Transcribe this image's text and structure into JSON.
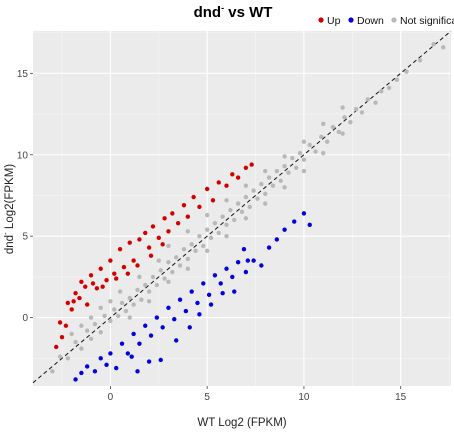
{
  "chart_data": {
    "type": "scatter",
    "title": "dnd- vs WT",
    "title_main": "dnd",
    "title_superscript": "-",
    "title_rest": " vs WT",
    "xlabel": "WT  Log2 (FPKM)",
    "ylabel": "dnd-  Log2(FPKM)",
    "ylabel_prefix": "dnd",
    "ylabel_superscript": "-",
    "ylabel_rest": "  Log2(FPKM)",
    "xlim": [
      -4,
      17.6
    ],
    "ylim": [
      -4.2,
      17.6
    ],
    "x_ticks": [
      0,
      5,
      10,
      15
    ],
    "x_tick_labels": [
      "0",
      "5",
      "10",
      "15"
    ],
    "y_ticks": [
      0,
      5,
      10,
      15
    ],
    "y_tick_labels": [
      "0",
      "5",
      "10",
      "15"
    ],
    "grid": true,
    "reference_line": {
      "style": "dashed",
      "slope": 1,
      "intercept": 0
    },
    "legend": {
      "placement": "top-right",
      "items": [
        {
          "label": "Up",
          "color": "#d40000"
        },
        {
          "label": "Down",
          "color": "#0000e0"
        },
        {
          "label": "Not significant",
          "color": "#b8b8b8"
        }
      ]
    },
    "series": [
      {
        "name": "Not significant",
        "color": "#b8b8b8",
        "points": [
          [
            -3,
            -3.3
          ],
          [
            -2.6,
            -2.4
          ],
          [
            -2.2,
            -2.5
          ],
          [
            -1.8,
            -1.5
          ],
          [
            -1.5,
            -1.9
          ],
          [
            -1.2,
            -0.8
          ],
          [
            -1,
            -1.3
          ],
          [
            -0.8,
            -0.4
          ],
          [
            -0.5,
            -0.9
          ],
          [
            -0.3,
            0.1
          ],
          [
            0,
            -0.2
          ],
          [
            0.2,
            0.5
          ],
          [
            0.4,
            0.1
          ],
          [
            0.6,
            0.9
          ],
          [
            0.8,
            0.4
          ],
          [
            1,
            1.2
          ],
          [
            1.2,
            0.8
          ],
          [
            1.4,
            1.7
          ],
          [
            1.6,
            1.1
          ],
          [
            1.8,
            2
          ],
          [
            2,
            1.6
          ],
          [
            2.2,
            2.5
          ],
          [
            2.4,
            2
          ],
          [
            2.6,
            2.9
          ],
          [
            2.8,
            2.4
          ],
          [
            3,
            3.4
          ],
          [
            3.2,
            2.8
          ],
          [
            3.4,
            3.7
          ],
          [
            3.6,
            3.2
          ],
          [
            3.8,
            4.2
          ],
          [
            4,
            3.6
          ],
          [
            4.2,
            4.5
          ],
          [
            4.4,
            4.1
          ],
          [
            4.6,
            5
          ],
          [
            4.8,
            4.4
          ],
          [
            5,
            5.4
          ],
          [
            5.2,
            4.9
          ],
          [
            5.4,
            5.8
          ],
          [
            5.6,
            5.2
          ],
          [
            5.8,
            6.2
          ],
          [
            6,
            5.7
          ],
          [
            6.2,
            6.6
          ],
          [
            6.4,
            6
          ],
          [
            6.6,
            7
          ],
          [
            6.8,
            6.5
          ],
          [
            7,
            7.4
          ],
          [
            7.2,
            6.8
          ],
          [
            7.4,
            7.8
          ],
          [
            7.6,
            7.3
          ],
          [
            7.8,
            8.2
          ],
          [
            8,
            7.6
          ],
          [
            8.2,
            8.6
          ],
          [
            8.4,
            8.1
          ],
          [
            8.6,
            9
          ],
          [
            8.8,
            8.4
          ],
          [
            9,
            9.3
          ],
          [
            9.2,
            8.9
          ],
          [
            9.4,
            9.8
          ],
          [
            9.6,
            9.2
          ],
          [
            9.8,
            10.1
          ],
          [
            10,
            9.7
          ],
          [
            10.3,
            10.6
          ],
          [
            10.6,
            10.2
          ],
          [
            10.9,
            11.1
          ],
          [
            11.2,
            10.8
          ],
          [
            11.5,
            11.7
          ],
          [
            11.8,
            11.4
          ],
          [
            12.1,
            12.3
          ],
          [
            12.4,
            12
          ],
          [
            12.7,
            12.8
          ],
          [
            13,
            12.6
          ],
          [
            13.3,
            13.4
          ],
          [
            13.7,
            13.2
          ],
          [
            14,
            13.9
          ],
          [
            14.4,
            14.1
          ],
          [
            14.8,
            14.6
          ],
          [
            15.3,
            15.1
          ],
          [
            16,
            15.8
          ],
          [
            16.7,
            16.8
          ],
          [
            17.2,
            16.6
          ],
          [
            3,
            4.4
          ],
          [
            4,
            5.3
          ],
          [
            5,
            6.3
          ],
          [
            6,
            7.2
          ],
          [
            7,
            8.1
          ],
          [
            8,
            9
          ],
          [
            9,
            9.9
          ],
          [
            10,
            10.8
          ],
          [
            11,
            11.9
          ],
          [
            12,
            12.9
          ],
          [
            3,
            2.2
          ],
          [
            4,
            3
          ],
          [
            5,
            4.1
          ],
          [
            6,
            5
          ],
          [
            7,
            6.1
          ],
          [
            8,
            7
          ],
          [
            9,
            8
          ],
          [
            10,
            9
          ],
          [
            11,
            10.1
          ],
          [
            12,
            11.3
          ],
          [
            0.5,
            1.6
          ],
          [
            1.5,
            2.5
          ],
          [
            2.5,
            3.5
          ],
          [
            1,
            0
          ],
          [
            2,
            1
          ],
          [
            -1,
            0
          ],
          [
            -2,
            -1
          ],
          [
            0,
            1
          ],
          [
            -0.5,
            0.6
          ],
          [
            -1.5,
            -0.5
          ]
        ]
      },
      {
        "name": "Up",
        "color": "#d40000",
        "points": [
          [
            -2.3,
            -0.5
          ],
          [
            -2.5,
            -1.2
          ],
          [
            -2.0,
            0.5
          ],
          [
            -1.8,
            1.5
          ],
          [
            -1.5,
            2.2
          ],
          [
            -1.2,
            0.8
          ],
          [
            -1,
            2.6
          ],
          [
            -0.7,
            1.8
          ],
          [
            -0.5,
            3
          ],
          [
            -0.2,
            2.3
          ],
          [
            0,
            3.5
          ],
          [
            0.2,
            2.7
          ],
          [
            0.5,
            4.2
          ],
          [
            0.7,
            3.1
          ],
          [
            1,
            4.6
          ],
          [
            1.2,
            3.5
          ],
          [
            1.5,
            4.8
          ],
          [
            1.8,
            5.2
          ],
          [
            2,
            4.3
          ],
          [
            2.2,
            5.6
          ],
          [
            2.5,
            4.9
          ],
          [
            2.8,
            6.1
          ],
          [
            3,
            5.3
          ],
          [
            3.2,
            6.4
          ],
          [
            3.5,
            5.8
          ],
          [
            3.8,
            6.9
          ],
          [
            4,
            6.2
          ],
          [
            4.3,
            7.4
          ],
          [
            4.6,
            6.8
          ],
          [
            5,
            7.9
          ],
          [
            5.3,
            7.2
          ],
          [
            5.6,
            8.3
          ],
          [
            6,
            8.1
          ],
          [
            6.3,
            8.8
          ],
          [
            6.6,
            8.6
          ],
          [
            7,
            9.2
          ],
          [
            7.3,
            9.4
          ],
          [
            -2.8,
            -1.8
          ],
          [
            -2.6,
            -0.3
          ],
          [
            -2.2,
            0.9
          ],
          [
            -1.9,
            1
          ],
          [
            -1.6,
            1.2
          ],
          [
            -1.3,
            1.9
          ],
          [
            -0.9,
            2.1
          ],
          [
            -0.4,
            1.9
          ],
          [
            0.3,
            2.4
          ],
          [
            0.9,
            2.7
          ],
          [
            1.4,
            3.2
          ],
          [
            2.1,
            3.8
          ],
          [
            2.7,
            4.5
          ]
        ]
      },
      {
        "name": "Down",
        "color": "#0000e0",
        "points": [
          [
            -1.8,
            -3.8
          ],
          [
            -1.5,
            -3.4
          ],
          [
            -1.2,
            -3.0
          ],
          [
            -0.8,
            -3.3
          ],
          [
            -0.5,
            -2.5
          ],
          [
            -0.2,
            -2.9
          ],
          [
            0,
            -2.2
          ],
          [
            0.3,
            -3.1
          ],
          [
            0.6,
            -1.6
          ],
          [
            0.9,
            -2.2
          ],
          [
            1.2,
            -1
          ],
          [
            1.5,
            -1.6
          ],
          [
            1.8,
            -0.5
          ],
          [
            2.1,
            -1.1
          ],
          [
            2.4,
            0
          ],
          [
            2.7,
            -0.6
          ],
          [
            3,
            0.6
          ],
          [
            3.3,
            -0.1
          ],
          [
            3.6,
            1.1
          ],
          [
            3.9,
            0.4
          ],
          [
            4.2,
            1.6
          ],
          [
            4.5,
            0.9
          ],
          [
            4.8,
            2.1
          ],
          [
            5.1,
            1.4
          ],
          [
            5.4,
            2.6
          ],
          [
            5.7,
            2.1
          ],
          [
            6,
            3
          ],
          [
            6.3,
            2.5
          ],
          [
            6.6,
            3.4
          ],
          [
            7,
            2.8
          ],
          [
            7.4,
            3.5
          ],
          [
            7.8,
            3.2
          ],
          [
            8.2,
            4.3
          ],
          [
            8.6,
            4.8
          ],
          [
            9,
            5.4
          ],
          [
            9.5,
            5.9
          ],
          [
            10,
            6.4
          ],
          [
            10.3,
            5.7
          ],
          [
            6.9,
            4.2
          ],
          [
            7.1,
            3.5
          ],
          [
            1.4,
            -3.3
          ],
          [
            2.0,
            -2.7
          ],
          [
            2.6,
            -2.6
          ],
          [
            3.4,
            -1.4
          ],
          [
            4.1,
            -0.6
          ],
          [
            4.6,
            0.2
          ],
          [
            5.2,
            0.8
          ],
          [
            5.8,
            1.5
          ],
          [
            6.4,
            1.6
          ],
          [
            1.1,
            -2.4
          ]
        ]
      }
    ]
  }
}
